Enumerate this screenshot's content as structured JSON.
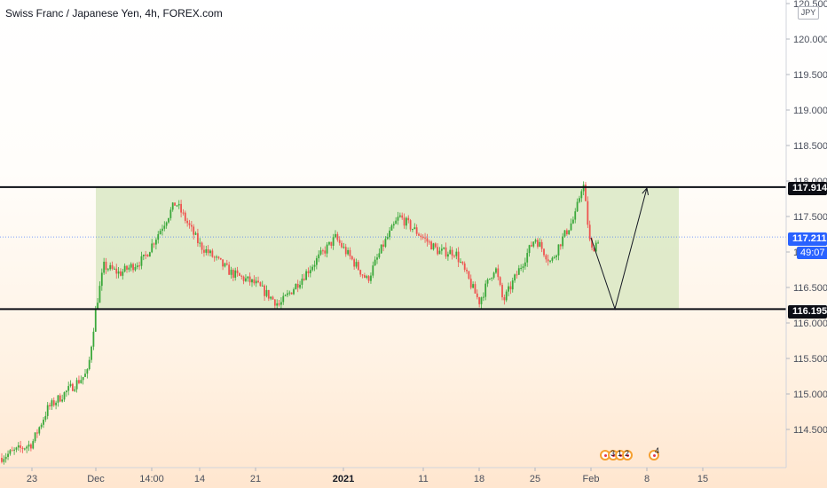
{
  "title": "Swiss Franc / Japanese Yen, 4h, FOREX.com",
  "currency_badge": "JPY",
  "colors": {
    "up": "#26a69a",
    "up_alt": "#3aa83a",
    "down": "#ef5350",
    "zone_fill": "#d6e6bd",
    "line": "#0c0e15",
    "current": "#2962ff"
  },
  "price_tags": {
    "resistance": "117.914",
    "support": "116.195",
    "current": "117.211",
    "timer": "49:07"
  },
  "events": [
    {
      "icon": "event-icon",
      "label": ""
    },
    {
      "icon": "event-icon",
      "label": "3"
    },
    {
      "icon": "event-icon",
      "label": "1"
    },
    {
      "icon": "event-icon",
      "label": "2"
    },
    {
      "icon": "event-icon",
      "label": "4"
    }
  ],
  "chart_data": {
    "type": "candlestick",
    "title": "Swiss Franc / Japanese Yen, 4h, FOREX.com",
    "ylim": [
      114.1,
      120.5
    ],
    "x_ticks": [
      "23",
      "Dec",
      "14:00",
      "14",
      "21",
      "2021",
      "11",
      "18",
      "25",
      "Feb",
      "8",
      "15"
    ],
    "y_ticks": [
      "120.500",
      "120.000",
      "119.500",
      "119.000",
      "118.500",
      "118.000",
      "117.500",
      "117.000",
      "116.500",
      "116.000",
      "115.500",
      "115.000",
      "114.500"
    ],
    "horizontal_lines": [
      117.914,
      116.195
    ],
    "current_price": 117.211,
    "range_zone": {
      "from": "Dec",
      "to": "Feb 12",
      "low": 116.195,
      "high": 117.914
    },
    "projection": [
      {
        "x": "Feb 1",
        "y": 117.2
      },
      {
        "x": "Feb 4",
        "y": 116.2
      },
      {
        "x": "Feb 8",
        "y": 117.9
      }
    ],
    "price_path": [
      {
        "x": "Nov 19",
        "y": 114.1
      },
      {
        "x": "Nov 23",
        "y": 114.3
      },
      {
        "x": "Nov 25",
        "y": 114.8
      },
      {
        "x": "Nov 27",
        "y": 115.0
      },
      {
        "x": "Nov 30",
        "y": 115.3
      },
      {
        "x": "Dec 1",
        "y": 116.2
      },
      {
        "x": "Dec 2",
        "y": 116.8
      },
      {
        "x": "Dec 4",
        "y": 116.7
      },
      {
        "x": "Dec 7",
        "y": 116.9
      },
      {
        "x": "Dec 9",
        "y": 117.3
      },
      {
        "x": "Dec 11",
        "y": 117.7
      },
      {
        "x": "Dec 14",
        "y": 117.1
      },
      {
        "x": "Dec 16",
        "y": 116.9
      },
      {
        "x": "Dec 18",
        "y": 116.7
      },
      {
        "x": "Dec 21",
        "y": 116.55
      },
      {
        "x": "Dec 24",
        "y": 116.25
      },
      {
        "x": "Dec 28",
        "y": 116.8
      },
      {
        "x": "Dec 31",
        "y": 117.2
      },
      {
        "x": "Jan 4",
        "y": 116.6
      },
      {
        "x": "Jan 6",
        "y": 117.1
      },
      {
        "x": "Jan 8",
        "y": 117.5
      },
      {
        "x": "Jan 11",
        "y": 117.2
      },
      {
        "x": "Jan 13",
        "y": 117.0
      },
      {
        "x": "Jan 15",
        "y": 117.0
      },
      {
        "x": "Jan 18",
        "y": 116.3
      },
      {
        "x": "Jan 20",
        "y": 116.8
      },
      {
        "x": "Jan 21",
        "y": 116.3
      },
      {
        "x": "Jan 25",
        "y": 117.2
      },
      {
        "x": "Jan 27",
        "y": 116.85
      },
      {
        "x": "Jan 28",
        "y": 117.1
      },
      {
        "x": "Jan 30",
        "y": 117.5
      },
      {
        "x": "Jan 31",
        "y": 118.0
      },
      {
        "x": "Feb 1",
        "y": 117.0
      },
      {
        "x": "Feb 2",
        "y": 117.2
      }
    ]
  }
}
